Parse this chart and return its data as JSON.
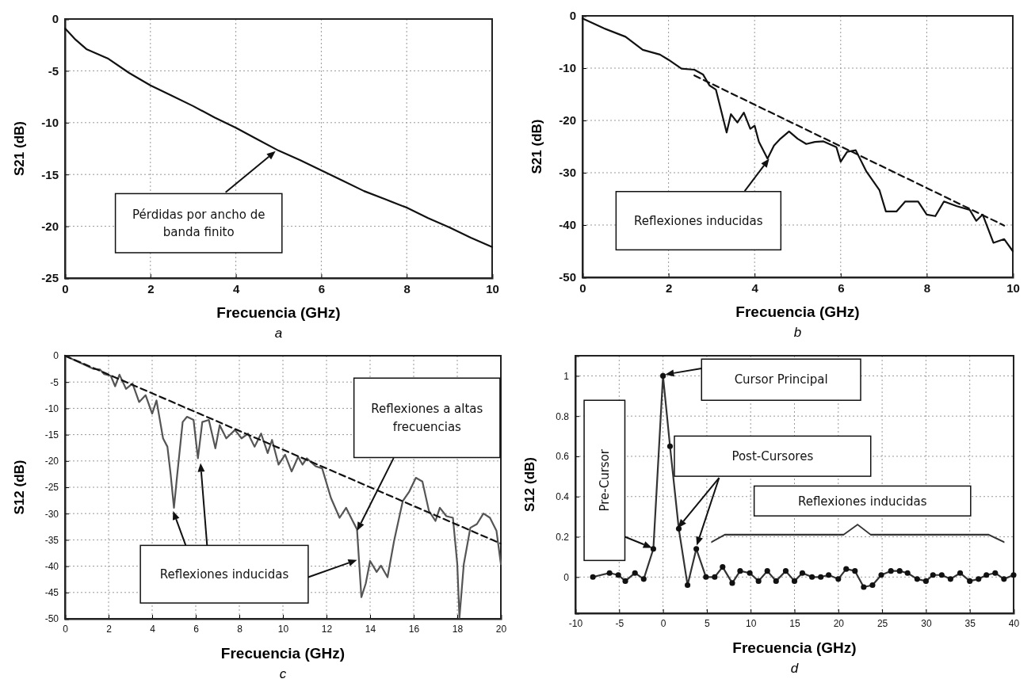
{
  "chart_data": [
    {
      "type": "line",
      "title": "a",
      "xlabel": "Frecuencia (GHz)",
      "ylabel": "S21 (dB)",
      "xlim": [
        0,
        10
      ],
      "ylim": [
        -25,
        0
      ],
      "xticks": [
        0,
        2,
        4,
        6,
        8,
        10
      ],
      "yticks": [
        -25,
        -20,
        -15,
        -10,
        -5,
        0
      ],
      "grid": true,
      "series": [
        {
          "color": "#111111",
          "x": [
            0,
            0.25,
            0.5,
            1,
            1.5,
            2,
            2.5,
            3,
            3.5,
            4,
            4.5,
            5,
            5.5,
            6,
            6.5,
            7,
            7.5,
            8,
            8.5,
            9,
            9.5,
            10
          ],
          "values": [
            -0.9,
            -2.0,
            -2.9,
            -3.8,
            -5.2,
            -6.4,
            -7.4,
            -8.4,
            -9.5,
            -10.5,
            -11.6,
            -12.7,
            -13.6,
            -14.6,
            -15.6,
            -16.6,
            -17.4,
            -18.2,
            -19.2,
            -20.1,
            -21.1,
            -22.0
          ]
        }
      ],
      "annotations": [
        "Pérdidas por ancho de banda finito"
      ]
    },
    {
      "type": "line",
      "title": "b",
      "xlabel": "Frecuencia (GHz)",
      "ylabel": "S21 (dB)",
      "xlim": [
        0,
        10
      ],
      "ylim": [
        -50,
        0
      ],
      "xticks": [
        0,
        2,
        4,
        6,
        8,
        10
      ],
      "yticks": [
        -50,
        -40,
        -30,
        -20,
        -10,
        0
      ],
      "grid": true,
      "series": [
        {
          "color": "#111111",
          "x": [
            0,
            0.5,
            1,
            1.4,
            1.8,
            2,
            2.3,
            2.6,
            2.8,
            2.95,
            3.1,
            3.35,
            3.45,
            3.6,
            3.75,
            3.9,
            4.0,
            4.1,
            4.3,
            4.45,
            4.6,
            4.8,
            5.0,
            5.2,
            5.4,
            5.6,
            5.9,
            6.0,
            6.15,
            6.35,
            6.6,
            6.9,
            7.05,
            7.3,
            7.5,
            7.8,
            8.0,
            8.2,
            8.4,
            8.7,
            9.0,
            9.15,
            9.3,
            9.55,
            9.8,
            10
          ],
          "values": [
            -0.5,
            -2.4,
            -4,
            -6.5,
            -7.4,
            -8.4,
            -10.1,
            -10.3,
            -11.2,
            -13.3,
            -14.1,
            -22.3,
            -18.8,
            -20.4,
            -18.5,
            -21.6,
            -21,
            -24.1,
            -27.3,
            -24.8,
            -23.5,
            -22.1,
            -23.5,
            -24.5,
            -24.1,
            -24,
            -25.1,
            -27.9,
            -26,
            -25.7,
            -29.8,
            -33.3,
            -37.4,
            -37.4,
            -35.5,
            -35.5,
            -38,
            -38.3,
            -35.5,
            -36.4,
            -37.1,
            -39.2,
            -38,
            -43.4,
            -42.7,
            -45
          ]
        },
        {
          "color": "#111111",
          "line_style": "dashed",
          "x": [
            2.6,
            9.8
          ],
          "values": [
            -11.4,
            -40.1
          ]
        }
      ],
      "annotations": [
        "Reflexiones inducidas"
      ]
    },
    {
      "type": "line",
      "title": "c",
      "xlabel": "Frecuencia (GHz)",
      "ylabel": "S12 (dB)",
      "xlim": [
        0,
        20
      ],
      "ylim": [
        -50,
        0
      ],
      "xticks": [
        0,
        2,
        4,
        6,
        8,
        10,
        12,
        14,
        16,
        18,
        20
      ],
      "yticks": [
        -50,
        -45,
        -40,
        -35,
        -30,
        -25,
        -20,
        -15,
        -10,
        -5,
        0
      ],
      "grid": true,
      "series": [
        {
          "color": "#555555",
          "x": [
            0,
            1.3,
            1.6,
            1.8,
            2.1,
            2.3,
            2.5,
            2.8,
            3.1,
            3.4,
            3.7,
            4.0,
            4.2,
            4.5,
            4.7,
            4.85,
            5.0,
            5.15,
            5.4,
            5.6,
            5.9,
            6.1,
            6.3,
            6.6,
            6.9,
            7.1,
            7.4,
            7.8,
            8.1,
            8.4,
            8.7,
            9.0,
            9.3,
            9.5,
            9.8,
            10.1,
            10.4,
            10.7,
            10.9,
            11.1,
            11.5,
            11.8,
            12.2,
            12.6,
            12.9,
            13.2,
            13.4,
            13.6,
            13.8,
            14.0,
            14.3,
            14.5,
            14.8,
            15.1,
            15.5,
            15.8,
            16.1,
            16.4,
            16.7,
            17.0,
            17.2,
            17.5,
            17.8,
            18.0,
            18.1,
            18.3,
            18.6,
            18.9,
            19.2,
            19.5,
            19.8,
            20
          ],
          "values": [
            0,
            -2.5,
            -2.6,
            -3.5,
            -3.8,
            -5.8,
            -3.6,
            -6.3,
            -5.3,
            -8.8,
            -7.5,
            -11,
            -8.5,
            -15.7,
            -17.3,
            -22.6,
            -28.9,
            -22.6,
            -12.6,
            -11.6,
            -12.2,
            -19.5,
            -12.6,
            -12.2,
            -17.6,
            -13.2,
            -15.7,
            -14.1,
            -15.7,
            -14.8,
            -17.3,
            -14.8,
            -18.5,
            -16,
            -20.7,
            -18.8,
            -22,
            -19.2,
            -20.7,
            -19.5,
            -21,
            -21.4,
            -27,
            -30.8,
            -28.9,
            -31.4,
            -33,
            -45.9,
            -43.3,
            -39,
            -41.1,
            -39.9,
            -42.1,
            -35.2,
            -27.6,
            -25.8,
            -23.2,
            -23.9,
            -29.5,
            -31.4,
            -28.9,
            -30.5,
            -30.8,
            -39.6,
            -49.8,
            -39.6,
            -32.7,
            -32,
            -30,
            -30.8,
            -33.3,
            -39.6
          ]
        },
        {
          "color": "#111111",
          "line_style": "dashed",
          "x": [
            0,
            20
          ],
          "values": [
            0,
            -35.7
          ]
        }
      ],
      "annotations": [
        "Reflexiones a altas frecuencias",
        "Reflexiones inducidas"
      ]
    },
    {
      "type": "line",
      "title": "d",
      "xlabel": "Frecuencia (GHz)",
      "ylabel": "S12 (dB)",
      "xlim": [
        -10,
        40
      ],
      "ylim": [
        -0.18,
        1.1
      ],
      "xticks": [
        -10,
        -5,
        0,
        5,
        10,
        15,
        20,
        25,
        30,
        35,
        40
      ],
      "yticks": [
        0,
        0.2,
        0.4,
        0.6,
        0.8,
        1
      ],
      "grid": true,
      "marker": "circle",
      "series": [
        {
          "color": "#333333",
          "x": [
            -8,
            -6.1,
            -5.1,
            -4.3,
            -3.2,
            -2.2,
            -1.1,
            0,
            0.8,
            1.8,
            2.8,
            3.8,
            4.9,
            5.9,
            6.8,
            7.9,
            8.8,
            9.9,
            10.9,
            11.9,
            12.9,
            14,
            15,
            15.9,
            17,
            18,
            18.9,
            20,
            20.9,
            21.9,
            22.9,
            23.9,
            24.9,
            26,
            27,
            27.9,
            29,
            30,
            30.8,
            31.8,
            32.8,
            33.9,
            35,
            36,
            36.9,
            37.9,
            38.9,
            40
          ],
          "values": [
            0,
            0.02,
            0.01,
            -0.02,
            0.02,
            -0.01,
            0.14,
            1.0,
            0.65,
            0.24,
            -0.04,
            0.14,
            0,
            0,
            0.05,
            -0.03,
            0.03,
            0.02,
            -0.02,
            0.03,
            -0.02,
            0.03,
            -0.02,
            0.02,
            0,
            0,
            0.01,
            -0.01,
            0.04,
            0.03,
            -0.05,
            -0.04,
            0.01,
            0.03,
            0.03,
            0.02,
            -0.01,
            -0.02,
            0.01,
            0.01,
            -0.01,
            0.02,
            -0.02,
            -0.01,
            0.01,
            0.02,
            -0.01,
            0.01
          ]
        }
      ],
      "annotations": [
        "Cursor Principal",
        "Pre-Cursor",
        "Post-Cursores",
        "Reflexiones inducidas"
      ]
    }
  ]
}
